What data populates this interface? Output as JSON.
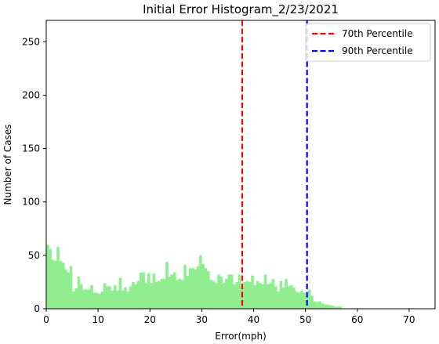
{
  "chart_data": {
    "type": "bar",
    "title": "Initial Error Histogram_2/23/2021",
    "xlabel": "Error(mph)",
    "ylabel": "Number of Cases",
    "xlim": [
      0,
      75
    ],
    "ylim": [
      0,
      270
    ],
    "xticks": [
      0,
      10,
      20,
      30,
      40,
      50,
      60,
      70
    ],
    "yticks": [
      0,
      50,
      100,
      150,
      200,
      250
    ],
    "bin_start": 0,
    "bin_width": 0.5,
    "bar_color": "#90ee90",
    "counts": [
      60,
      56,
      46,
      45,
      58,
      45,
      43,
      37,
      34,
      40,
      16,
      19,
      30,
      23,
      18,
      18,
      18,
      22,
      15,
      15,
      14,
      16,
      24,
      21,
      21,
      17,
      22,
      17,
      29,
      17,
      20,
      16,
      21,
      25,
      23,
      26,
      34,
      34,
      24,
      33,
      24,
      33,
      25,
      26,
      28,
      28,
      44,
      30,
      32,
      34,
      27,
      28,
      27,
      41,
      31,
      38,
      38,
      37,
      40,
      50,
      42,
      38,
      35,
      27,
      26,
      24,
      32,
      30,
      24,
      28,
      32,
      32,
      23,
      25,
      32,
      20,
      25,
      26,
      25,
      31,
      22,
      26,
      24,
      23,
      32,
      23,
      24,
      28,
      21,
      16,
      26,
      20,
      28,
      21,
      22,
      20,
      16,
      15,
      17,
      15,
      13,
      18,
      12,
      7,
      6,
      7,
      5,
      4,
      4,
      3,
      3,
      2,
      2,
      2
    ]
  },
  "lines": [
    {
      "x": 37.8,
      "label": "70th Percentile",
      "color": "#ff0000"
    },
    {
      "x": 50.3,
      "label": "90th Percentile",
      "color": "#0000ff"
    }
  ],
  "legend": {
    "position": "upper right"
  }
}
